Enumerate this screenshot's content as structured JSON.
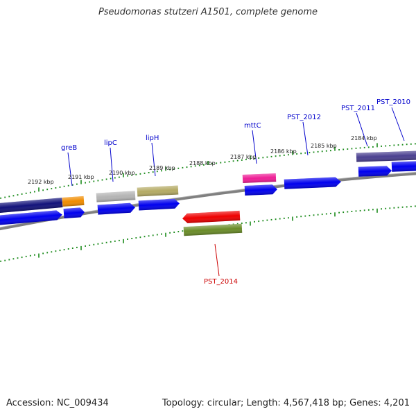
{
  "title": "Pseudomonas stutzeri A1501, complete genome",
  "footer": {
    "accession": "Accession: NC_009434",
    "summary": "Topology: circular; Length: 4,567,418 bp; Genes: 4,201"
  },
  "scale_labels": [
    "2192 kbp",
    "2191 kbp",
    "2190 kbp",
    "2189 kbp",
    "2188 kbp",
    "2187 kbp",
    "2186 kbp",
    "2185 kbp",
    "2184 kbp"
  ],
  "gene_labels": [
    {
      "id": "greB",
      "text": "greB",
      "color": "#0000cc"
    },
    {
      "id": "lipC",
      "text": "lipC",
      "color": "#0000cc"
    },
    {
      "id": "lipH",
      "text": "lipH",
      "color": "#0000cc"
    },
    {
      "id": "mttC",
      "text": "mttC",
      "color": "#0000cc"
    },
    {
      "id": "PST_2012",
      "text": "PST_2012",
      "color": "#0000cc"
    },
    {
      "id": "PST_2011",
      "text": "PST_2011",
      "color": "#0000cc"
    },
    {
      "id": "PST_2010",
      "text": "PST_2010",
      "color": "#0000cc"
    },
    {
      "id": "PST_2014",
      "text": "PST_2014",
      "color": "#cc0000"
    }
  ],
  "colors": {
    "backbone": "#808080",
    "ticks": "#1a8a1a",
    "cds": "#0000ee",
    "navy": "#12127a",
    "orange": "#f08c00",
    "grey": "#b4b4b4",
    "khaki": "#b4aa64",
    "pink": "#ee1e96",
    "purple": "#4a4090",
    "red": "#ee0000",
    "olive": "#6a8c28"
  }
}
